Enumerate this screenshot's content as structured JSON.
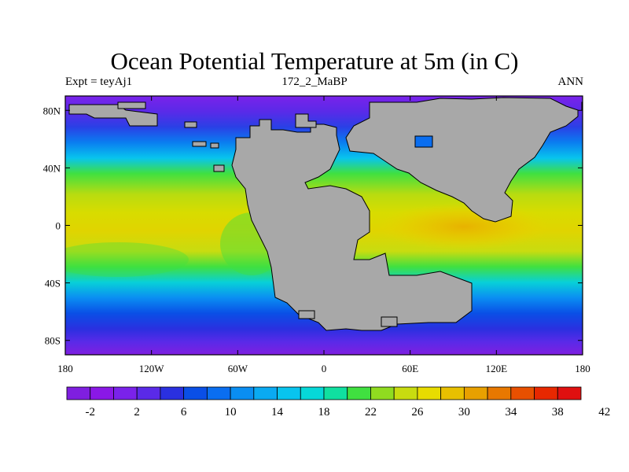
{
  "title": "Ocean Potential Temperature at 5m (in C)",
  "subtitle_left": "Expt = teyAj1",
  "subtitle_center": "172_2_MaBP",
  "subtitle_right": "ANN",
  "x_axis": {
    "ticks": [
      "180",
      "120W",
      "60W",
      "0",
      "60E",
      "120E",
      "180"
    ],
    "values": [
      -180,
      -120,
      -60,
      0,
      60,
      120,
      180
    ]
  },
  "y_axis": {
    "ticks": [
      "80N",
      "40N",
      "0",
      "40S",
      "80S"
    ],
    "values": [
      80,
      40,
      0,
      -40,
      -80
    ]
  },
  "colorbar": {
    "labels": [
      "-2",
      "2",
      "6",
      "10",
      "14",
      "18",
      "22",
      "26",
      "30",
      "34",
      "38",
      "42"
    ],
    "colors": [
      "#7f1fe0",
      "#8a18e6",
      "#7a22ea",
      "#5a2ae8",
      "#2a30e0",
      "#0a4fe6",
      "#0a6ef0",
      "#0a8ef2",
      "#0aaaf2",
      "#08c4ee",
      "#06d8d8",
      "#10e0a0",
      "#40e040",
      "#90dc20",
      "#c8dc10",
      "#e8dc00",
      "#e8c000",
      "#e8a000",
      "#e87800",
      "#e85000",
      "#e82800",
      "#e01010"
    ]
  },
  "land_color": "#a8a8a8",
  "chart_data": {
    "type": "heatmap",
    "title": "Ocean Potential Temperature at 5m (in C)",
    "variable": "ocean potential temperature at 5m",
    "units": "C",
    "x_range": [
      -180,
      180
    ],
    "y_range": [
      -90,
      90
    ],
    "zonal_pattern_estimate": [
      {
        "lat": 85,
        "value": -2
      },
      {
        "lat": 70,
        "value": 2
      },
      {
        "lat": 55,
        "value": 10
      },
      {
        "lat": 40,
        "value": 20
      },
      {
        "lat": 25,
        "value": 27
      },
      {
        "lat": 10,
        "value": 29
      },
      {
        "lat": 0,
        "value": 30
      },
      {
        "lat": -10,
        "value": 29
      },
      {
        "lat": -25,
        "value": 26
      },
      {
        "lat": -40,
        "value": 18
      },
      {
        "lat": -55,
        "value": 10
      },
      {
        "lat": -65,
        "value": 4
      },
      {
        "lat": -80,
        "value": -2
      }
    ],
    "max_region_estimate": {
      "lon": 80,
      "lat": 0,
      "value": 34
    }
  }
}
